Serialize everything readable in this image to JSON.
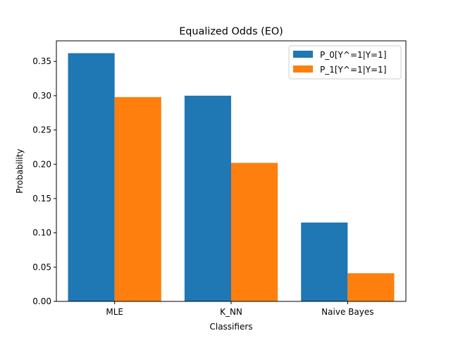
{
  "chart_data": {
    "type": "bar",
    "title": "Equalized Odds (EO)",
    "xlabel": "Classifiers",
    "ylabel": "Probability",
    "categories": [
      "MLE",
      "K_NN",
      "Naive Bayes"
    ],
    "series": [
      {
        "name": "P_0[Y^=1|Y=1]",
        "color": "#1f77b4",
        "values": [
          0.362,
          0.3,
          0.115
        ]
      },
      {
        "name": "P_1[Y^=1|Y=1]",
        "color": "#ff7f0e",
        "values": [
          0.298,
          0.202,
          0.041
        ]
      }
    ],
    "ylim": [
      0,
      0.38
    ],
    "yticks": [
      "0.00",
      "0.05",
      "0.10",
      "0.15",
      "0.20",
      "0.25",
      "0.30",
      "0.35"
    ],
    "legend": "top-right",
    "grid": false
  }
}
